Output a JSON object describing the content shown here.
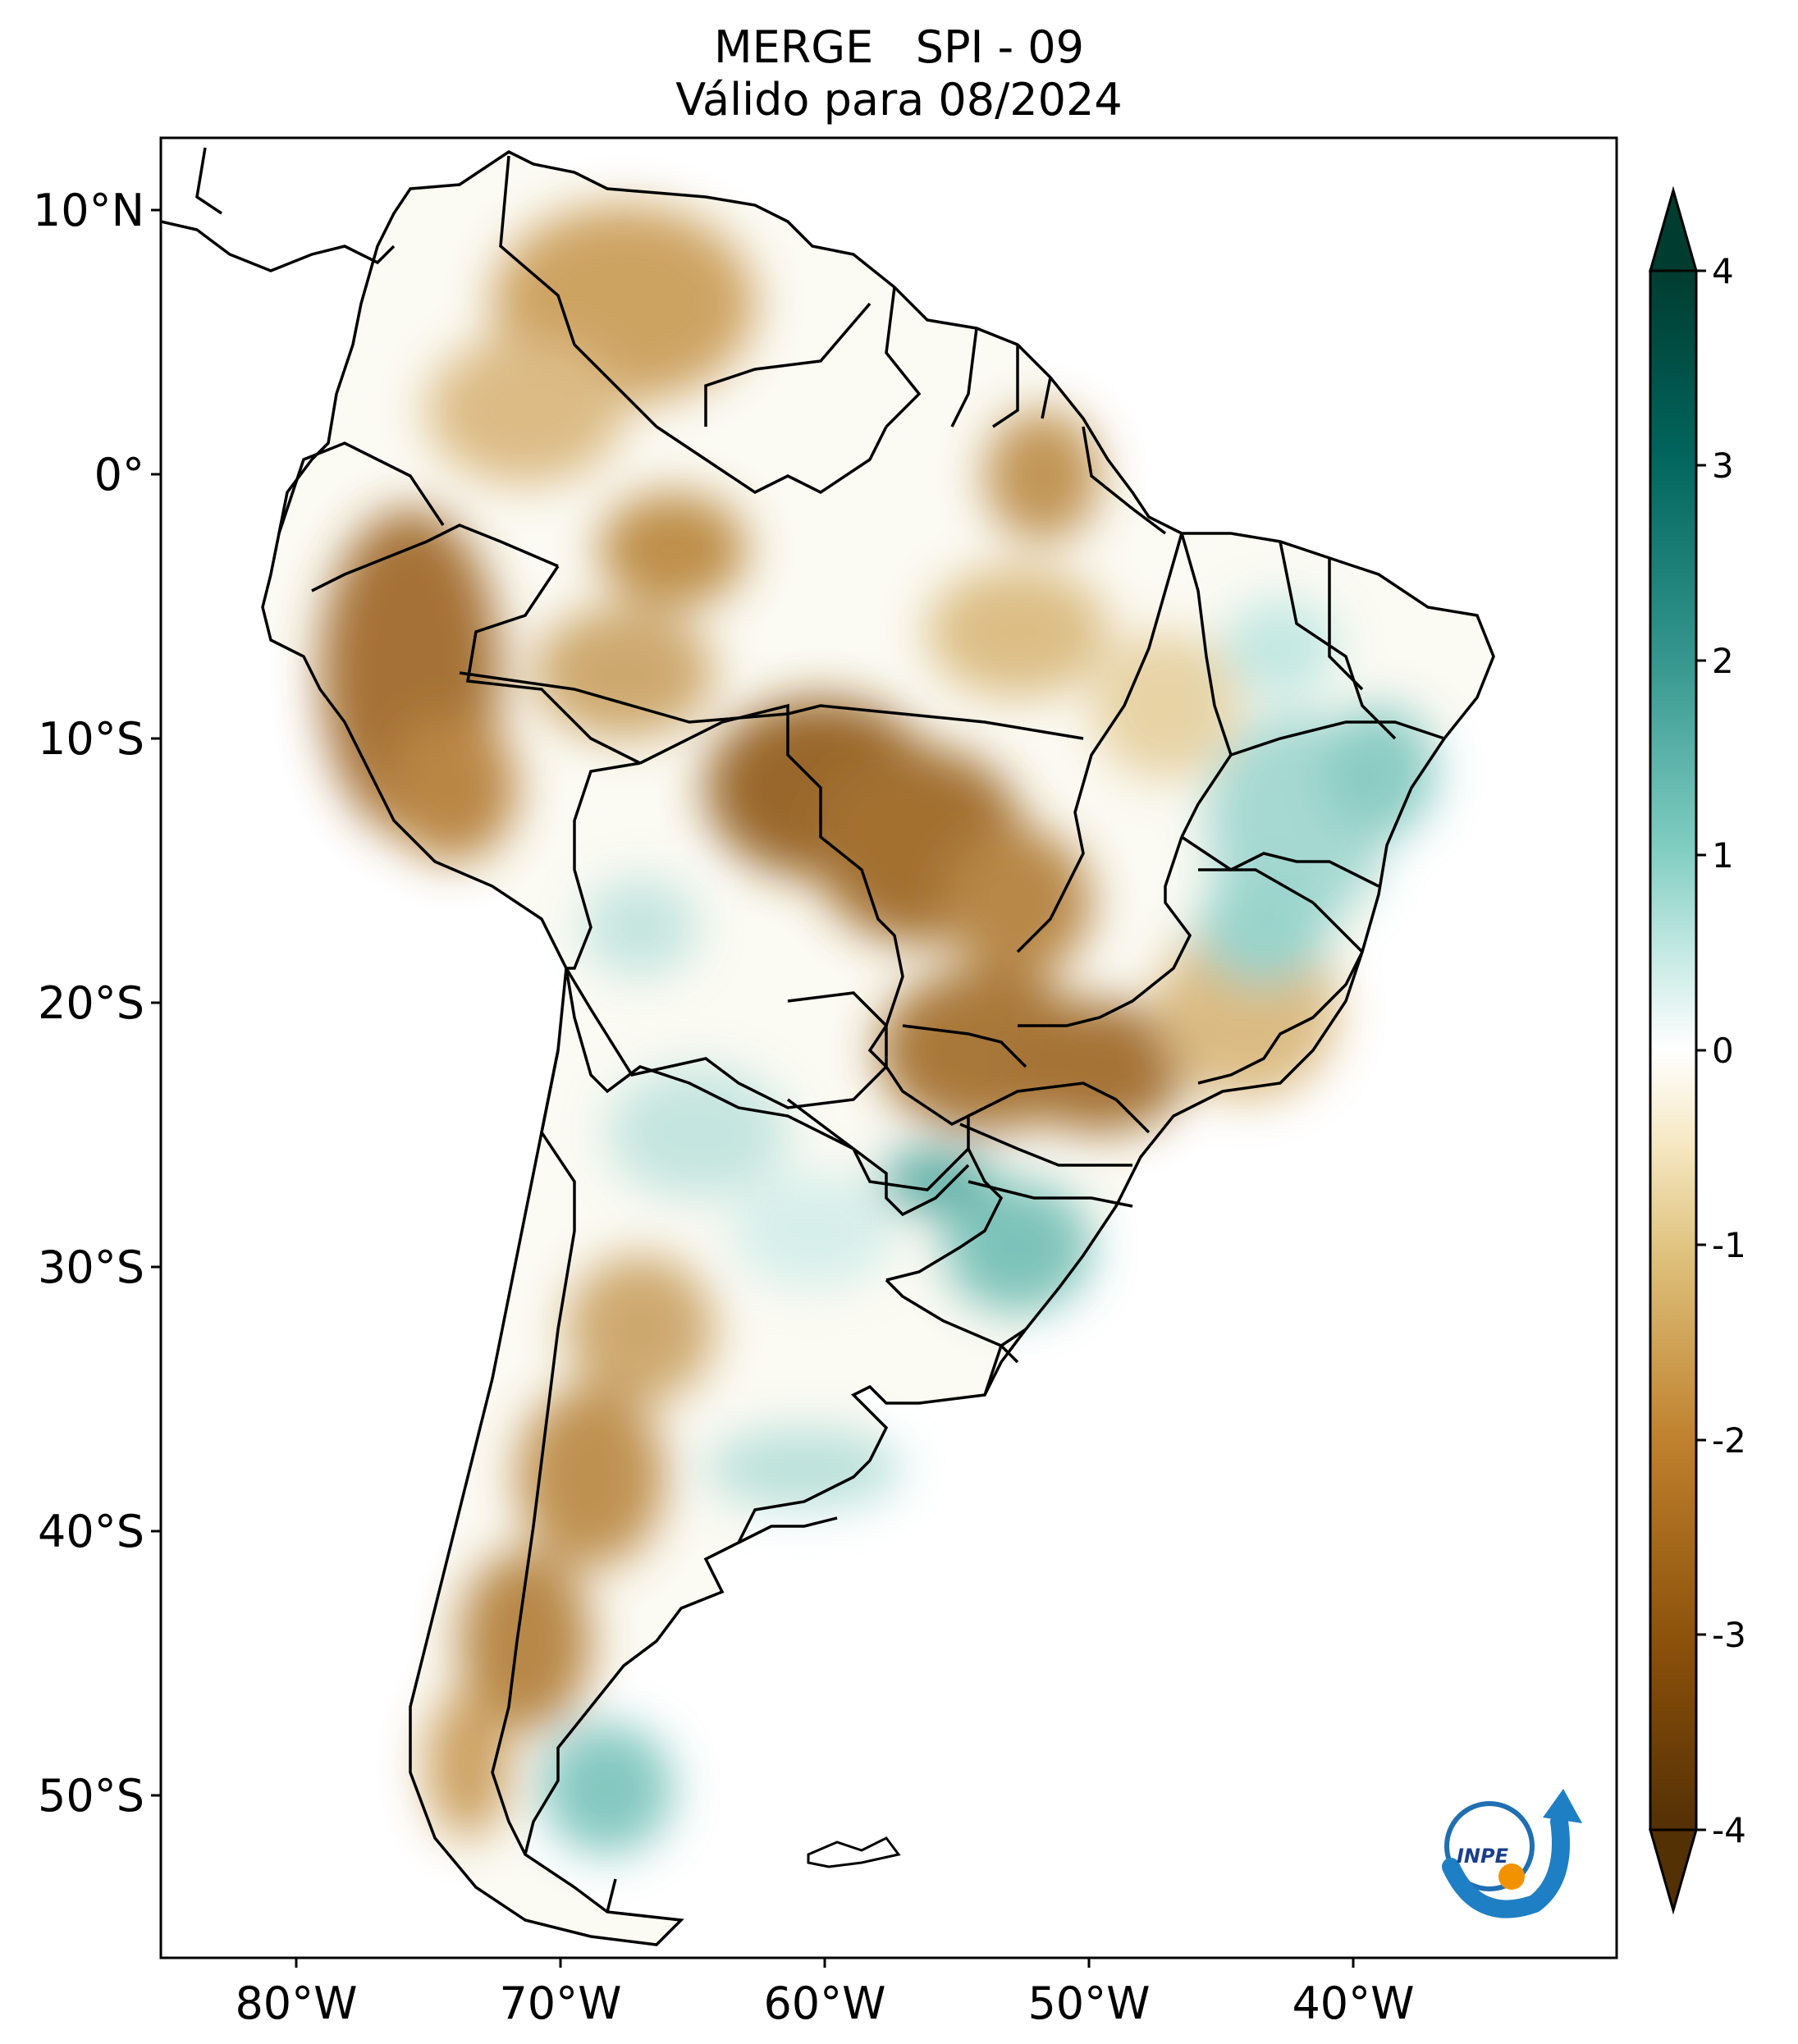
{
  "title": {
    "line1": "MERGE   SPI - 09",
    "line2": "Válido para 08/2024"
  },
  "map": {
    "lat_ticks": [
      "10°N",
      "0°",
      "10°S",
      "20°S",
      "30°S",
      "40°S",
      "50°S"
    ],
    "lon_ticks": [
      "80°W",
      "70°W",
      "60°W",
      "50°W",
      "40°W"
    ]
  },
  "colorbar": {
    "ticks": [
      "4",
      "3",
      "2",
      "1",
      "0",
      "-1",
      "-2",
      "-3",
      "-4"
    ],
    "range": [
      -4,
      4
    ],
    "colors": [
      "#543005",
      "#8c510a",
      "#bf812d",
      "#dfc27d",
      "#f6e8c3",
      "#ffffff",
      "#c7eae5",
      "#80cdc1",
      "#35978f",
      "#01665e",
      "#003c30"
    ]
  },
  "logo": {
    "text": "INPE"
  }
}
